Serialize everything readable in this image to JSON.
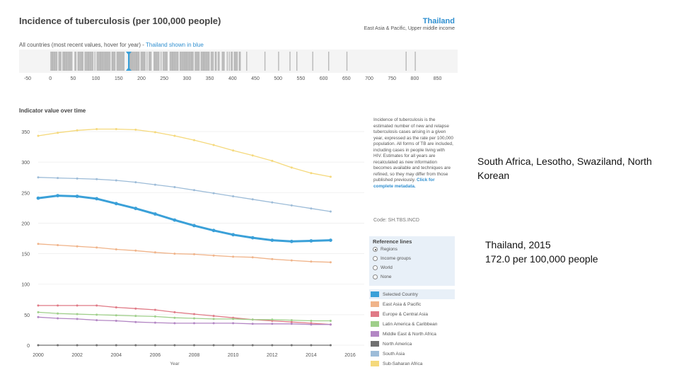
{
  "header": {
    "title": "Incidence of tuberculosis (per 100,000 people)",
    "country": "Thailand",
    "country_sub": "East Asia & Pacific, Upper middle income"
  },
  "strip": {
    "caption_prefix": "All countries (most recent values, hover for year) - ",
    "caption_highlight": "Thailand shown in blue",
    "ticks": [
      "-50",
      "0",
      "50",
      "100",
      "150",
      "200",
      "250",
      "300",
      "350",
      "400",
      "450",
      "500",
      "550",
      "600",
      "650",
      "700",
      "750",
      "800",
      "850"
    ],
    "highlight_value": 172
  },
  "indicator": {
    "title": "Indicator value over time",
    "description": "Incidence of tuberculosis is the estimated number of new and relapse tuberculosis cases arising in a given year, expressed as the rate per 100,000 population. All forms of TB are included, including cases in people living with HIV. Estimates for all years are recalculated as new information becomes available and techniques are refined, so they may differ from those published previously.",
    "link": "Click for complete metadata.",
    "code": "Code: SH.TBS.INCD"
  },
  "reference": {
    "title": "Reference lines",
    "options": [
      "Regions",
      "Income groups",
      "World",
      "None"
    ],
    "selected": "Regions"
  },
  "chart_data": {
    "type": "line",
    "xlabel": "Year",
    "ylabel": "",
    "xlim": [
      2000,
      2016
    ],
    "ylim": [
      0,
      350
    ],
    "x_ticks": [
      "2000",
      "2002",
      "2004",
      "2006",
      "2008",
      "2010",
      "2012",
      "2014",
      "2016"
    ],
    "y_ticks": [
      "0",
      "50",
      "100",
      "150",
      "200",
      "250",
      "300",
      "350"
    ],
    "x": [
      2000,
      2001,
      2002,
      2003,
      2004,
      2005,
      2006,
      2007,
      2008,
      2009,
      2010,
      2011,
      2012,
      2013,
      2014,
      2015
    ],
    "series": [
      {
        "name": "Selected Country",
        "color": "#3aa0d8",
        "width": 3,
        "values": [
          241,
          245,
          244,
          240,
          232,
          224,
          215,
          205,
          196,
          188,
          181,
          176,
          172,
          170,
          171,
          172
        ]
      },
      {
        "name": "East Asia & Pacific",
        "color": "#f0b48a",
        "width": 1.3,
        "values": [
          166,
          164,
          162,
          160,
          157,
          155,
          152,
          150,
          149,
          147,
          145,
          144,
          141,
          139,
          137,
          136
        ]
      },
      {
        "name": "Europe & Central Asia",
        "color": "#e07a86",
        "width": 1.3,
        "values": [
          65,
          65,
          65,
          65,
          62,
          60,
          58,
          54,
          51,
          48,
          45,
          42,
          40,
          38,
          36,
          34
        ]
      },
      {
        "name": "Latin America & Caribbean",
        "color": "#9fcf8a",
        "width": 1.3,
        "values": [
          54,
          52,
          51,
          50,
          49,
          48,
          47,
          45,
          44,
          43,
          43,
          42,
          42,
          41,
          40,
          40
        ]
      },
      {
        "name": "Middle East & North Africa",
        "color": "#b387c4",
        "width": 1.3,
        "values": [
          46,
          44,
          43,
          41,
          40,
          38,
          37,
          36,
          36,
          36,
          36,
          35,
          35,
          35,
          34,
          34
        ]
      },
      {
        "name": "North America",
        "color": "#707070",
        "width": 1.3,
        "values": [
          0,
          0,
          0,
          0,
          0,
          0,
          0,
          0,
          0,
          0,
          0,
          0,
          0,
          0,
          0,
          0
        ]
      },
      {
        "name": "South Asia",
        "color": "#9dbcd8",
        "width": 1.3,
        "values": [
          275,
          274,
          273,
          272,
          270,
          267,
          263,
          259,
          254,
          249,
          244,
          239,
          234,
          229,
          224,
          219
        ]
      },
      {
        "name": "Sub-Saharan Africa",
        "color": "#f5d97c",
        "width": 1.3,
        "values": [
          343,
          348,
          352,
          354,
          354,
          353,
          349,
          343,
          336,
          328,
          319,
          311,
          302,
          291,
          282,
          276
        ]
      }
    ]
  },
  "notes": {
    "first": "South Africa, Lesotho, Swaziland, North Korean",
    "second_line1": "Thailand, 2015",
    "second_line2": "172.0 per 100,000 people"
  }
}
